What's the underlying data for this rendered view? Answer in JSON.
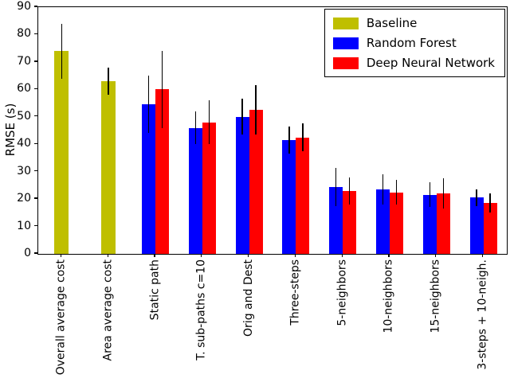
{
  "chart_data": {
    "type": "bar",
    "title": "",
    "xlabel": "",
    "ylabel": "RMSE (s)",
    "ylim": [
      0,
      90
    ],
    "yticks": [
      0,
      10,
      20,
      30,
      40,
      50,
      60,
      70,
      80,
      90
    ],
    "grid": false,
    "legend_position": "upper right",
    "error_bars": true,
    "categories": [
      "Overall average cost",
      "Area average cost",
      "Static path",
      "T. sub-paths c=10",
      "Orig and Dest",
      "Three-steps",
      "5-neighbors",
      "10-neighbors",
      "15-neighbors",
      "3-steps + 10-neigh."
    ],
    "series": [
      {
        "name": "Baseline",
        "color": "#bfbf00",
        "values": [
          74,
          63,
          null,
          null,
          null,
          null,
          null,
          null,
          null,
          null
        ],
        "errors": [
          10,
          5,
          null,
          null,
          null,
          null,
          null,
          null,
          null,
          null
        ]
      },
      {
        "name": "Random Forest",
        "color": "#0000ff",
        "values": [
          null,
          null,
          54.5,
          46,
          50,
          41.5,
          24.5,
          23.5,
          21.5,
          20.5
        ],
        "errors": [
          null,
          null,
          10.5,
          6,
          6.5,
          5,
          7,
          5.5,
          4.5,
          3
        ]
      },
      {
        "name": "Deep Neural Network",
        "color": "#ff0000",
        "values": [
          null,
          null,
          60,
          48,
          52.5,
          42.5,
          23,
          22.5,
          22,
          18.5
        ],
        "errors": [
          null,
          null,
          14,
          8,
          9,
          5,
          5,
          4.5,
          5.5,
          3.5
        ]
      }
    ]
  }
}
